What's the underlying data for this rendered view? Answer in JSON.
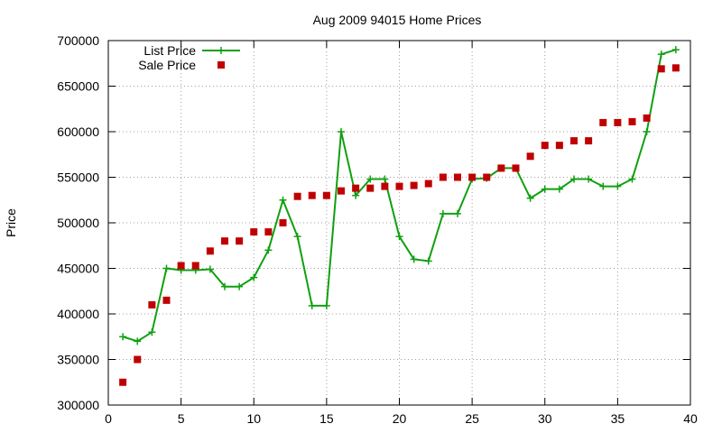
{
  "chart_data": {
    "type": "scatter",
    "title": "Aug 2009 94015 Home Prices",
    "xlabel": "",
    "ylabel": "Price",
    "xlim": [
      0,
      40
    ],
    "ylim": [
      300000,
      700000
    ],
    "x_ticks": [
      0,
      5,
      10,
      15,
      20,
      25,
      30,
      35,
      40
    ],
    "y_ticks": [
      300000,
      350000,
      400000,
      450000,
      500000,
      550000,
      600000,
      650000,
      700000
    ],
    "x_tick_labels": [
      "0",
      "5",
      "10",
      "15",
      "20",
      "25",
      "30",
      "35",
      "40"
    ],
    "y_tick_labels": [
      "300000",
      "350000",
      "400000",
      "450000",
      "500000",
      "550000",
      "600000",
      "650000",
      "700000"
    ],
    "grid": true,
    "legend_position": "top-left",
    "x": [
      1,
      2,
      3,
      4,
      5,
      6,
      7,
      8,
      9,
      10,
      11,
      12,
      13,
      14,
      15,
      16,
      17,
      18,
      19,
      20,
      21,
      22,
      23,
      24,
      25,
      26,
      27,
      28,
      29,
      30,
      31,
      32,
      33,
      34,
      35,
      36,
      37,
      38,
      39
    ],
    "series": [
      {
        "name": "List Price",
        "style": "linespoints",
        "marker": "plus",
        "color": "#10a010",
        "values": [
          375000,
          370000,
          380000,
          450000,
          448000,
          448000,
          449000,
          430000,
          430000,
          440000,
          470000,
          525000,
          485000,
          409000,
          409000,
          600000,
          530000,
          548000,
          548000,
          485000,
          460000,
          458000,
          510000,
          510000,
          548000,
          549000,
          560000,
          560000,
          527000,
          537000,
          537000,
          548000,
          548000,
          540000,
          540000,
          548000,
          600000,
          685000,
          690000
        ]
      },
      {
        "name": "Sale Price",
        "style": "points",
        "marker": "square",
        "color": "#c00000",
        "values": [
          325000,
          350000,
          410000,
          415000,
          453000,
          453000,
          469000,
          480000,
          480000,
          490000,
          490000,
          500000,
          529000,
          530000,
          530000,
          535000,
          538000,
          538000,
          540000,
          540000,
          541000,
          543000,
          550000,
          550000,
          550000,
          550000,
          560000,
          560000,
          573000,
          585000,
          585000,
          590000,
          590000,
          610000,
          610000,
          611000,
          615000,
          669000,
          670000
        ]
      }
    ]
  }
}
